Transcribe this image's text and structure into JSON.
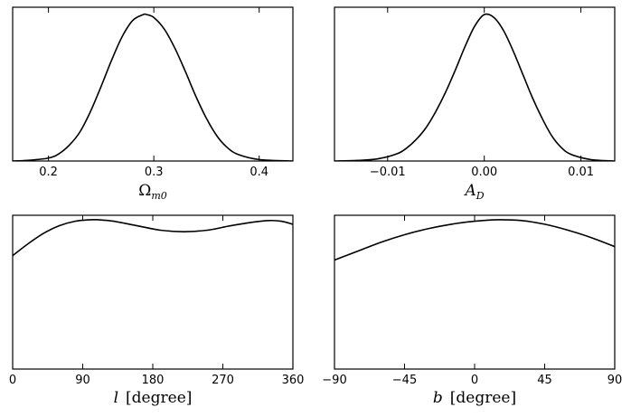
{
  "chart_data": [
    {
      "type": "line",
      "xlabel": "Ω_m0",
      "xlim": [
        0.166,
        0.432
      ],
      "ylim": [
        0,
        1.05
      ],
      "xticks": [
        0.2,
        0.3,
        0.4
      ],
      "xtick_labels": [
        "0.2",
        "0.3",
        "0.4"
      ],
      "x": [
        0.166,
        0.18,
        0.2,
        0.21,
        0.22,
        0.23,
        0.24,
        0.25,
        0.26,
        0.27,
        0.28,
        0.29,
        0.293,
        0.3,
        0.31,
        0.32,
        0.33,
        0.34,
        0.35,
        0.36,
        0.37,
        0.38,
        0.4,
        0.432
      ],
      "y": [
        0.0,
        0.004,
        0.02,
        0.05,
        0.11,
        0.2,
        0.34,
        0.51,
        0.69,
        0.85,
        0.96,
        1.0,
        1.0,
        0.98,
        0.9,
        0.77,
        0.61,
        0.44,
        0.29,
        0.17,
        0.09,
        0.045,
        0.01,
        0.0
      ]
    },
    {
      "type": "line",
      "xlabel": "A_D",
      "xlim": [
        -0.0155,
        0.0135
      ],
      "ylim": [
        0,
        1.05
      ],
      "xticks": [
        -0.01,
        0.0,
        0.01
      ],
      "xtick_labels": [
        "−0.01",
        "0.00",
        "0.01"
      ],
      "x": [
        -0.0155,
        -0.013,
        -0.011,
        -0.009,
        -0.008,
        -0.007,
        -0.006,
        -0.005,
        -0.004,
        -0.003,
        -0.002,
        -0.001,
        0.0,
        0.001,
        0.002,
        0.003,
        0.004,
        0.005,
        0.006,
        0.007,
        0.008,
        0.009,
        0.011,
        0.0135
      ],
      "y": [
        0.0,
        0.004,
        0.015,
        0.05,
        0.09,
        0.15,
        0.23,
        0.34,
        0.47,
        0.62,
        0.78,
        0.92,
        1.0,
        0.98,
        0.89,
        0.75,
        0.59,
        0.43,
        0.29,
        0.17,
        0.09,
        0.045,
        0.01,
        0.0
      ]
    },
    {
      "type": "line",
      "xlabel": "l [degree]",
      "xlim": [
        0,
        360
      ],
      "ylim": [
        0,
        1.03
      ],
      "xticks": [
        0,
        90,
        180,
        270,
        360
      ],
      "xtick_labels": [
        "0",
        "90",
        "180",
        "270",
        "360"
      ],
      "x": [
        0,
        20,
        40,
        60,
        80,
        100,
        110,
        130,
        160,
        190,
        220,
        250,
        280,
        310,
        330,
        345,
        360
      ],
      "y": [
        0.76,
        0.84,
        0.91,
        0.96,
        0.99,
        1.0,
        1.0,
        0.99,
        0.96,
        0.93,
        0.92,
        0.93,
        0.96,
        0.985,
        0.995,
        0.99,
        0.97
      ]
    },
    {
      "type": "line",
      "xlabel": "b [degree]",
      "xlim": [
        -90,
        90
      ],
      "ylim": [
        0,
        1.03
      ],
      "xticks": [
        -90,
        -45,
        0,
        45,
        90
      ],
      "xtick_labels": [
        "−90",
        "−45",
        "0",
        "45",
        "90"
      ],
      "x": [
        -90,
        -75,
        -60,
        -45,
        -30,
        -15,
        0,
        15,
        30,
        45,
        60,
        75,
        90
      ],
      "y": [
        0.73,
        0.79,
        0.85,
        0.9,
        0.94,
        0.97,
        0.99,
        1.0,
        0.995,
        0.97,
        0.93,
        0.88,
        0.82
      ]
    }
  ]
}
